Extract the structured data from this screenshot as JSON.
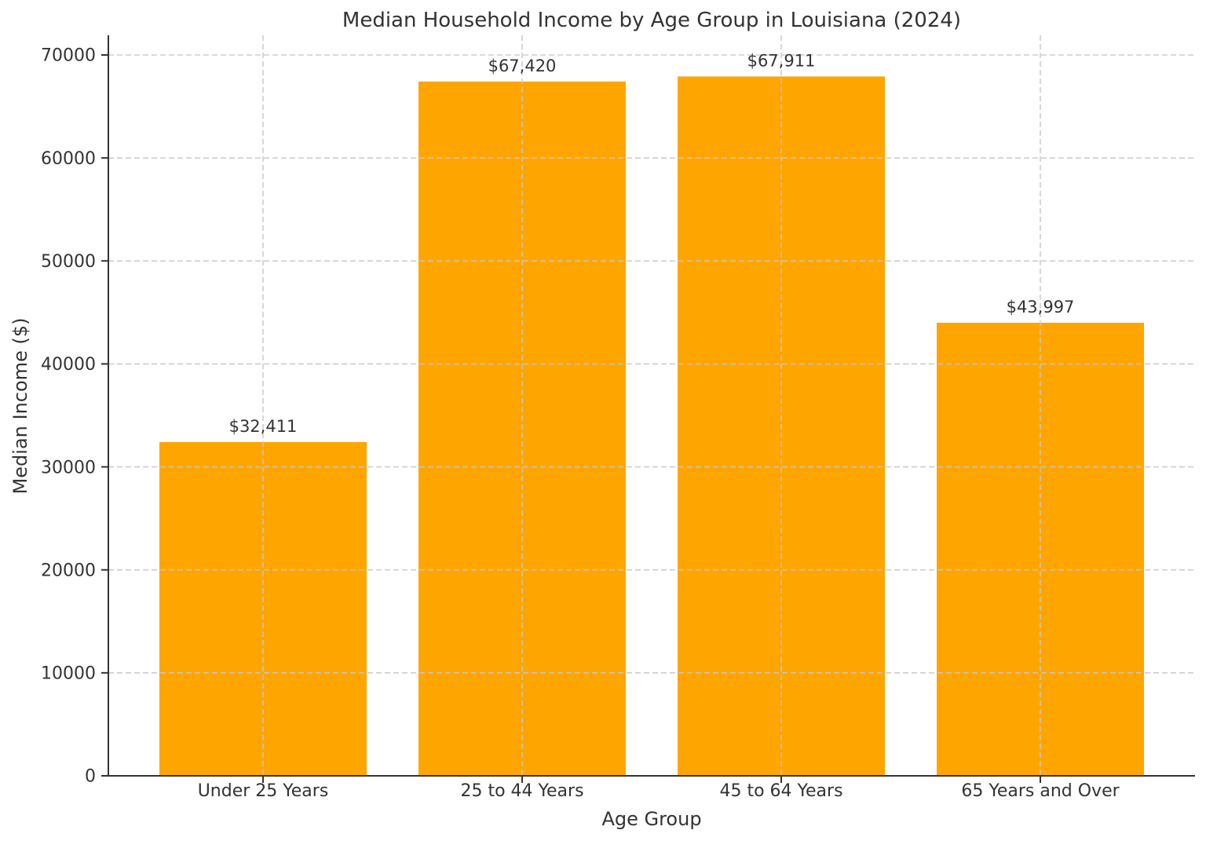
{
  "figure": {
    "background_color": "#ffffff",
    "text_color": "#333333",
    "spine_color": "#333333"
  },
  "chart_data": {
    "type": "bar",
    "title": "Median Household Income by Age Group in Louisiana (2024)",
    "xlabel": "Age Group",
    "ylabel": "Median Income ($)",
    "categories": [
      "Under 25 Years",
      "25 to 44 Years",
      "45 to 64 Years",
      "65 Years and Over"
    ],
    "values": [
      32411,
      67420,
      67911,
      43997
    ],
    "bar_value_labels": [
      "$32,411",
      "$67,420",
      "$67,911",
      "$43,997"
    ],
    "bar_color": "#FFA500",
    "ylim": [
      0,
      71900
    ],
    "yticks": [
      0,
      10000,
      20000,
      30000,
      40000,
      50000,
      60000,
      70000
    ],
    "ytick_labels": [
      "0",
      "10000",
      "20000",
      "30000",
      "40000",
      "50000",
      "60000",
      "70000"
    ],
    "grid": true,
    "grid_line_style": "dashed",
    "grid_color": "#c8c8c8",
    "grid_drawn_above_bars": true,
    "legend_position": "none"
  }
}
